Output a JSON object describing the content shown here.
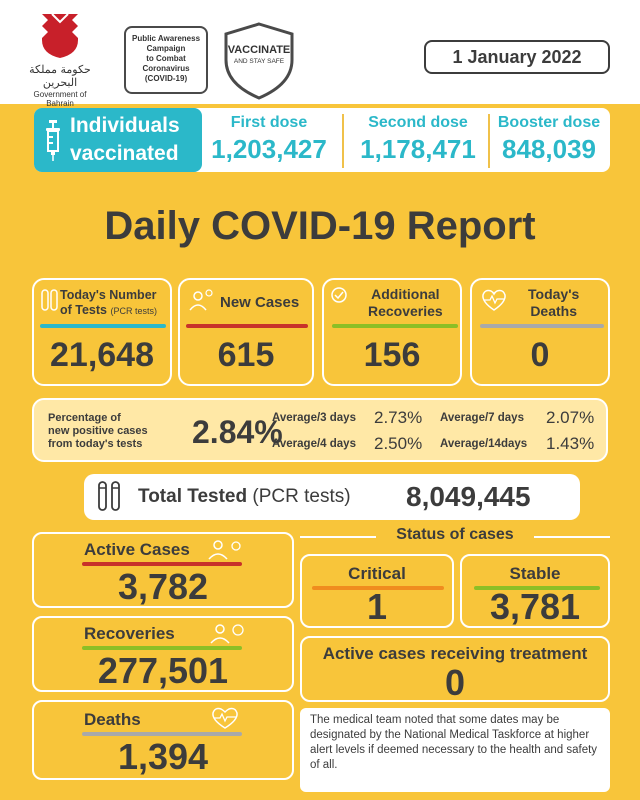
{
  "header": {
    "gov_name_ar": "حكومة مملكة البحرين",
    "gov_name_en": "Government of Bahrain",
    "campaign": [
      "Public Awareness",
      "Campaign",
      "to Combat",
      "Coronavirus",
      "(COVID-19)"
    ],
    "vaccinate": "VACCINATE",
    "stay_safe": "AND STAY SAFE",
    "date": "1 January 2022"
  },
  "vaccination": {
    "label_line1": "Individuals",
    "label_line2": "vaccinated",
    "first_label": "First dose",
    "first_value": "1,203,427",
    "second_label": "Second dose",
    "second_value": "1,178,471",
    "booster_label": "Booster dose",
    "booster_value": "848,039"
  },
  "title": "Daily COVID-19 Report",
  "cards": {
    "tests_label1": "Today's Number",
    "tests_label2": "of Tests",
    "tests_label_small": "(PCR tests)",
    "tests_value": "21,648",
    "new_cases_label": "New Cases",
    "new_cases_value": "615",
    "recoveries_label1": "Additional",
    "recoveries_label2": "Recoveries",
    "recoveries_value": "156",
    "deaths_label1": "Today's",
    "deaths_label2": "Deaths",
    "deaths_value": "0"
  },
  "percentage": {
    "desc1": "Percentage of",
    "desc2": "new positive cases",
    "desc3": "from today's tests",
    "value": "2.84%",
    "avg3_label": "Average/3 days",
    "avg3_value": "2.73%",
    "avg7_label": "Average/7 days",
    "avg7_value": "2.07%",
    "avg4_label": "Average/4 days",
    "avg4_value": "2.50%",
    "avg14_label": "Average/14days",
    "avg14_value": "1.43%"
  },
  "total": {
    "label_bold": "Total Tested",
    "label_rest": "(PCR tests)",
    "value": "8,049,445"
  },
  "totals": {
    "active_label": "Active Cases",
    "active_value": "3,782",
    "recoveries_label": "Recoveries",
    "recoveries_value": "277,501",
    "deaths_label": "Deaths",
    "deaths_value": "1,394"
  },
  "status": {
    "title": "Status of cases",
    "critical_label": "Critical",
    "critical_value": "1",
    "stable_label": "Stable",
    "stable_value": "3,781",
    "treatment_label": "Active cases receiving treatment",
    "treatment_value": "0",
    "note": "The medical team noted that some dates may be designated by the National Medical Taskforce at higher alert levels if deemed necessary to the health and safety of all."
  },
  "colors": {
    "background": "#f8c53a",
    "teal": "#2bb8c9",
    "red": "#c8322a",
    "orange": "#f08c1e",
    "green": "#8cbf26",
    "grey": "#a9a9a9",
    "text": "#3c3c3c"
  }
}
